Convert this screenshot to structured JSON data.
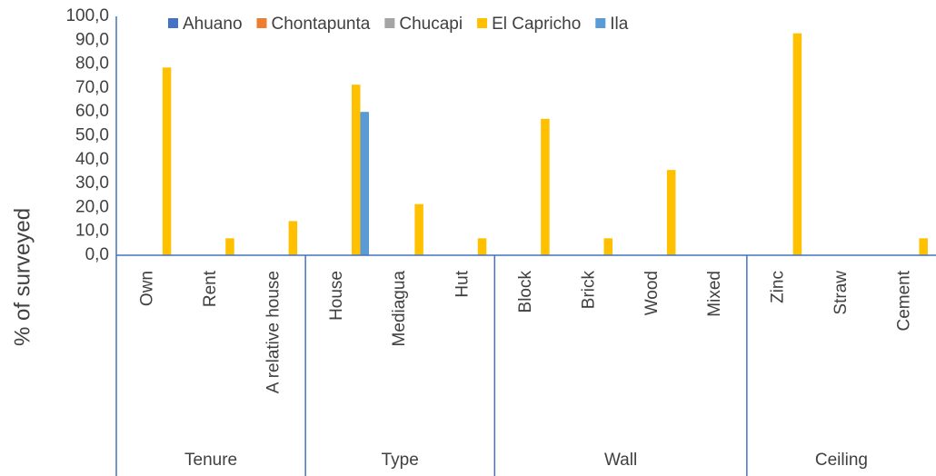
{
  "chart_data": {
    "type": "bar",
    "y_label": "% of surveyed",
    "categories": [
      "Own",
      "Rent",
      "A relative house",
      "House",
      "Mediagua",
      "Hut",
      "Block",
      "Brick",
      "Wood",
      "Mixed",
      "Zinc",
      "Straw",
      "Cement"
    ],
    "groups": [
      {
        "name": "Tenure",
        "count": 3
      },
      {
        "name": "Type",
        "count": 3
      },
      {
        "name": "Wall",
        "count": 4
      },
      {
        "name": "Ceiling",
        "count": 3
      }
    ],
    "series": [
      {
        "name": "Ahuano",
        "color": "#4472c4",
        "values": [
          0,
          0,
          0,
          0,
          0,
          0,
          0,
          0,
          0,
          0,
          0,
          0,
          0
        ]
      },
      {
        "name": "Chontapunta",
        "color": "#ed7d31",
        "values": [
          0,
          0,
          0,
          0,
          0,
          0,
          0,
          0,
          0,
          0,
          0,
          0,
          0
        ]
      },
      {
        "name": "Chucapi",
        "color": "#a5a5a5",
        "values": [
          0,
          0,
          0,
          0,
          0,
          0,
          0,
          0,
          0,
          0,
          0,
          0,
          0
        ]
      },
      {
        "name": "El Capricho",
        "color": "#ffc000",
        "values": [
          78.6,
          7.1,
          14.3,
          71.4,
          21.4,
          7.1,
          57.1,
          7.1,
          35.7,
          0,
          92.9,
          0,
          7.1
        ]
      },
      {
        "name": "Ila",
        "color": "#5b9bd5",
        "values": [
          0,
          0,
          0,
          60,
          0,
          0,
          0,
          0,
          0,
          0,
          0,
          0,
          0
        ]
      }
    ],
    "ylim": [
      0,
      100
    ],
    "yticks": [
      {
        "value": 0,
        "label": "0,0"
      },
      {
        "value": 10,
        "label": "10,0"
      },
      {
        "value": 20,
        "label": "20,0"
      },
      {
        "value": 30,
        "label": "30,0"
      },
      {
        "value": 40,
        "label": "40,0"
      },
      {
        "value": 50,
        "label": "50,0"
      },
      {
        "value": 60,
        "label": "60,0"
      },
      {
        "value": 70,
        "label": "70,0"
      },
      {
        "value": 80,
        "label": "80,0"
      },
      {
        "value": 90,
        "label": "90,0"
      },
      {
        "value": 100,
        "label": "100,0"
      }
    ],
    "grid": false,
    "legend": "top"
  }
}
